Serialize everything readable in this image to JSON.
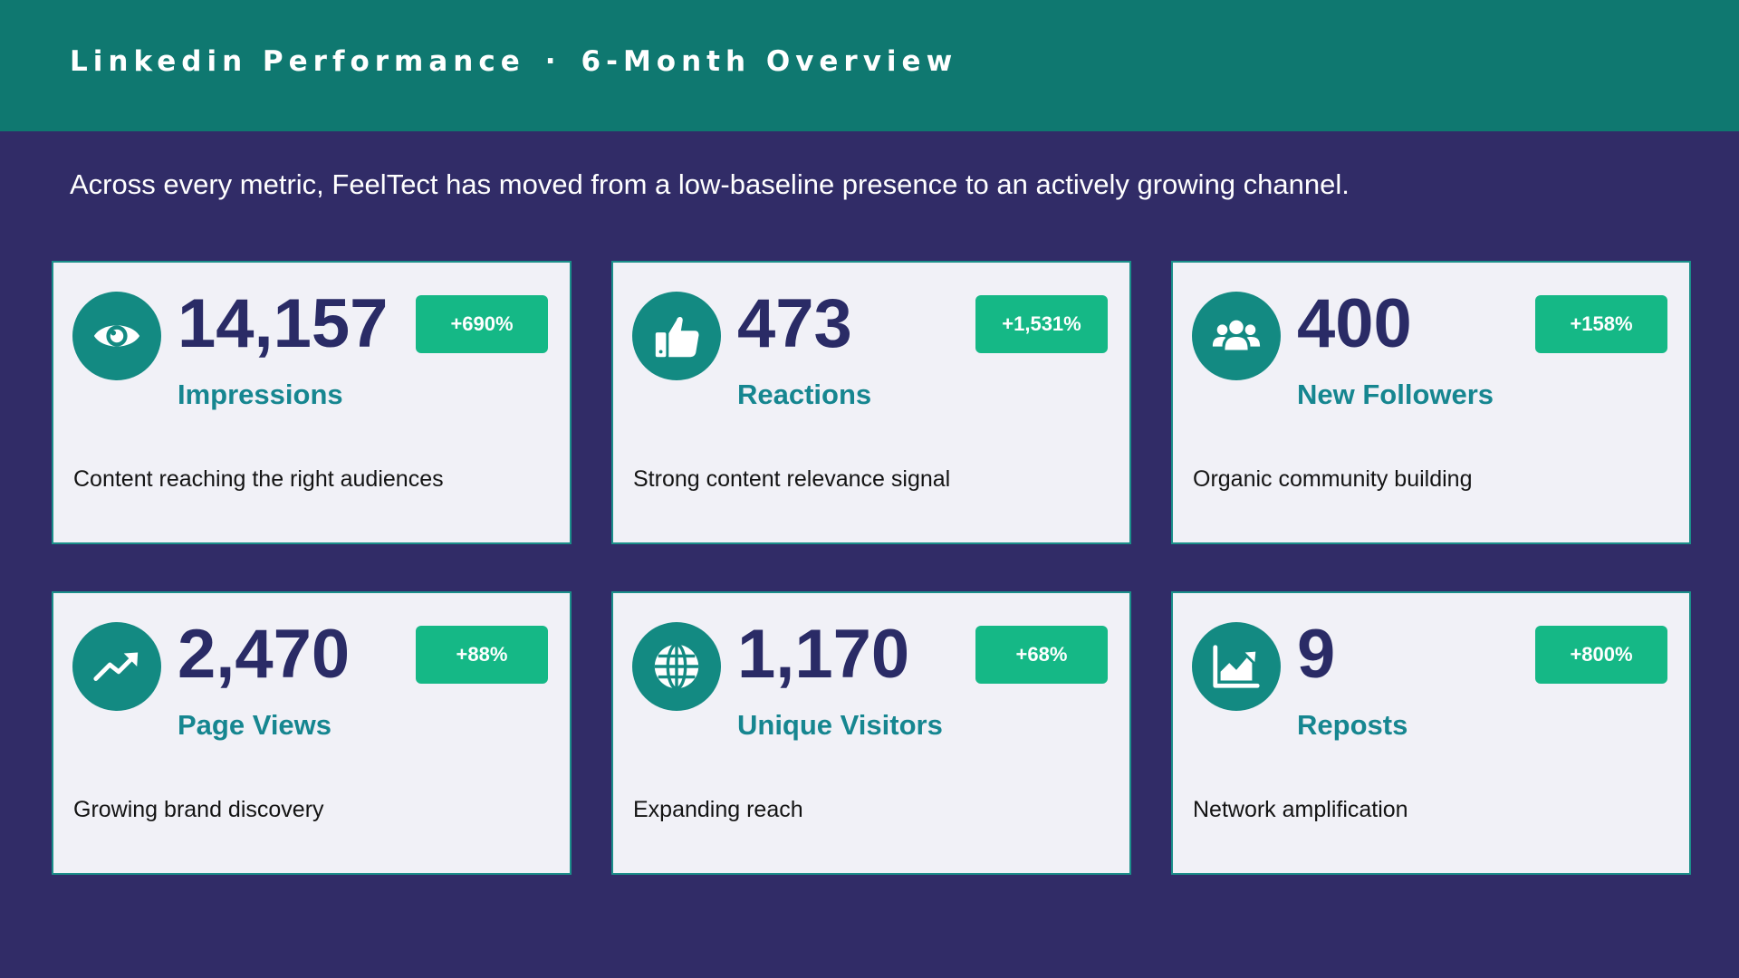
{
  "header": {
    "title": "Linkedin Performance",
    "separator": "·",
    "period": "6-Month Overview"
  },
  "subtitle": "Across every metric, FeelTect has moved from a low-baseline presence to an actively growing channel.",
  "colors": {
    "header_bg": "#0f7870",
    "page_bg": "#312c67",
    "card_bg": "#f1f1f7",
    "accent_teal": "#138a82",
    "badge_green": "#15b886",
    "value_navy": "#2a2b66",
    "label_teal": "#168690"
  },
  "cards": [
    {
      "icon": "eye-icon",
      "value": "14,157",
      "label": "Impressions",
      "change": "+690%",
      "description": "Content reaching the right audiences"
    },
    {
      "icon": "thumbs-up-icon",
      "value": "473",
      "label": "Reactions",
      "change": "+1,531%",
      "description": "Strong content relevance signal"
    },
    {
      "icon": "users-icon",
      "value": "400",
      "label": "New Followers",
      "change": "+158%",
      "description": "Organic community building"
    },
    {
      "icon": "trending-up-icon",
      "value": "2,470",
      "label": "Page Views",
      "change": "+88%",
      "description": "Growing brand discovery"
    },
    {
      "icon": "globe-icon",
      "value": "1,170",
      "label": "Unique Visitors",
      "change": "+68%",
      "description": "Expanding reach"
    },
    {
      "icon": "area-chart-icon",
      "value": "9",
      "label": "Reposts",
      "change": "+800%",
      "description": "Network amplification"
    }
  ]
}
